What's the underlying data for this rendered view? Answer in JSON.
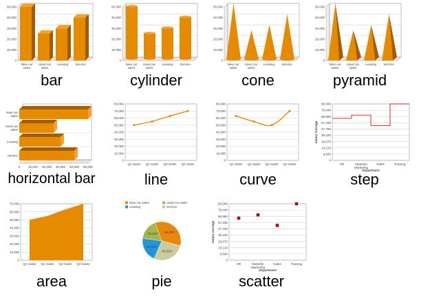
{
  "colors": {
    "bar": "#e68a00",
    "bar_top": "#f6a22a",
    "bar_side": "#a35d00",
    "grid": "#d0d0d0",
    "step": "#e01010",
    "scatter": "#cc0000"
  },
  "chart_data": [
    {
      "id": "bar",
      "type": "bar",
      "caption": "bar",
      "style": "box",
      "categories": [
        "New car sales",
        "Used car sales",
        "Leasing",
        "Service"
      ],
      "values": [
        50000,
        25000,
        30000,
        40000
      ],
      "ylim": [
        0,
        50000
      ],
      "yticks": [
        0,
        10000,
        20000,
        30000,
        40000,
        50000
      ]
    },
    {
      "id": "cylinder",
      "type": "bar",
      "caption": "cylinder",
      "style": "cylinder",
      "categories": [
        "New car sales",
        "Used car sales",
        "Leasing",
        "Service"
      ],
      "values": [
        50000,
        25000,
        30000,
        40000
      ],
      "ylim": [
        0,
        50000
      ],
      "yticks": [
        0,
        10000,
        20000,
        30000,
        40000,
        50000
      ]
    },
    {
      "id": "cone",
      "type": "bar",
      "caption": "cone",
      "style": "cone",
      "categories": [
        "New car sales",
        "Used car sales",
        "Leasing",
        "Service"
      ],
      "values": [
        50000,
        25000,
        30000,
        40000
      ],
      "ylim": [
        0,
        50000
      ],
      "yticks": [
        0,
        10000,
        20000,
        30000,
        40000,
        50000
      ]
    },
    {
      "id": "pyramid",
      "type": "bar",
      "caption": "pyramid",
      "style": "pyramid",
      "categories": [
        "New car sales",
        "Used car sales",
        "Leasing",
        "Service"
      ],
      "values": [
        50000,
        25000,
        30000,
        40000
      ],
      "ylim": [
        0,
        50000
      ],
      "yticks": [
        0,
        10000,
        20000,
        30000,
        40000,
        50000
      ]
    },
    {
      "id": "hbar",
      "type": "bar",
      "orientation": "horizontal",
      "caption": "horizontal bar",
      "style": "box",
      "categories": [
        "New car sales",
        "Used car sales",
        "Leasing",
        "Service"
      ],
      "values": [
        50000,
        25000,
        30000,
        40000
      ],
      "xlim": [
        0,
        50000
      ],
      "xticks": [
        0,
        10000,
        20000,
        30000,
        40000,
        50000
      ]
    },
    {
      "id": "line",
      "type": "line",
      "caption": "line",
      "categories": [
        "Q1 Sales",
        "Q2 Sales",
        "Q3 Sales",
        "Q4 Sales"
      ],
      "values": [
        50000,
        55000,
        63000,
        70000
      ],
      "ylim": [
        0,
        80000
      ],
      "yticks": [
        0,
        10000,
        20000,
        30000,
        40000,
        50000,
        60000,
        70000,
        80000
      ]
    },
    {
      "id": "curve",
      "type": "line",
      "smooth": true,
      "caption": "curve",
      "categories": [
        "Q1 Sales",
        "Q2 Sales",
        "Q3 Sales",
        "Q4 Sales"
      ],
      "values": [
        63000,
        55000,
        50000,
        70000
      ],
      "ylim": [
        0,
        80000
      ],
      "yticks": [
        0,
        10000,
        20000,
        30000,
        40000,
        50000,
        60000,
        70000,
        80000
      ]
    },
    {
      "id": "step",
      "type": "step",
      "caption": "step",
      "categories": [
        "HR",
        "Marketing",
        "Sales",
        "Training"
      ],
      "values": [
        64000,
        69000,
        53000,
        86000
      ],
      "ylim": [
        0,
        86000
      ],
      "yticks": [
        0,
        9560,
        19110,
        28670,
        38220,
        47780,
        57330,
        66890,
        76440,
        86000
      ],
      "xlabel": "Department",
      "ylabel": "Salary Average"
    },
    {
      "id": "area",
      "type": "area",
      "caption": "area",
      "categories": [
        "Q1 Sales",
        "Q2 Sales",
        "Q3 Sales",
        "Q4 Sales"
      ],
      "values": [
        50000,
        55000,
        63000,
        70000
      ],
      "ylim": [
        0,
        70000
      ],
      "yticks": [
        0,
        10000,
        20000,
        30000,
        40000,
        50000,
        60000,
        70000
      ]
    },
    {
      "id": "pie",
      "type": "pie",
      "caption": "pie",
      "categories": [
        "New car sales",
        "Used car sales",
        "Leasing",
        "Service"
      ],
      "values": [
        50000,
        25000,
        30000,
        40000
      ],
      "slice_colors": [
        "#e8870c",
        "#a3b84a",
        "#1f96d8",
        "#cdcb9c"
      ],
      "legend": "top"
    },
    {
      "id": "scatter",
      "type": "scatter",
      "caption": "scatter",
      "categories": [
        "HR",
        "Marketing",
        "Sales",
        "Training"
      ],
      "values": [
        64000,
        69000,
        53000,
        86000
      ],
      "ylim": [
        0,
        86000
      ],
      "yticks": [
        0,
        9560,
        19110,
        28670,
        38220,
        47780,
        57330,
        66890,
        76440,
        86000
      ],
      "xlabel": "Department",
      "ylabel": "Salary Average"
    }
  ]
}
